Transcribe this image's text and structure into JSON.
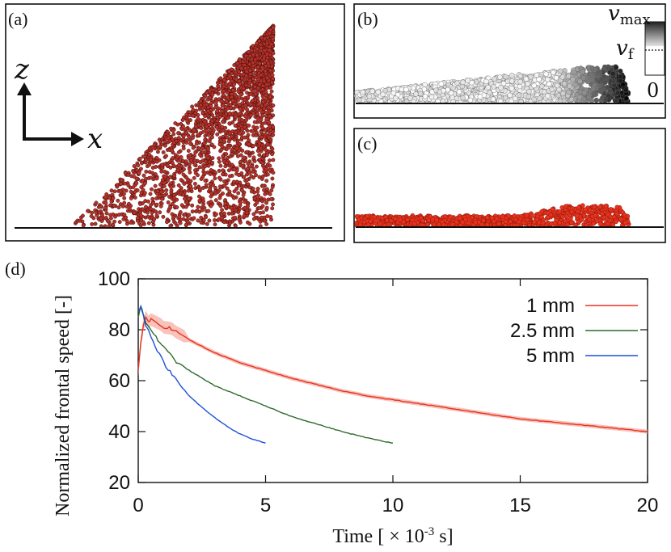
{
  "panels": {
    "a": {
      "label": "(a)",
      "axis_x": "x",
      "axis_z": "z",
      "particle_color": "#b8322a"
    },
    "b": {
      "label": "(b)",
      "colorbar_max": "v",
      "colorbar_max_sub": "max",
      "colorbar_mid": "v",
      "colorbar_mid_sub": "f",
      "colorbar_zero": "0"
    },
    "c": {
      "label": "(c)",
      "particle_color": "#e8321e"
    },
    "d": {
      "label": "(d)"
    }
  },
  "chart_data": {
    "type": "line",
    "xlabel": "Time [ × 10",
    "xlabel_exp": "-3",
    "xlabel_unit": " s]",
    "ylabel": "Normalized frontal speed [-]",
    "xlim": [
      0,
      20
    ],
    "ylim": [
      20,
      100
    ],
    "xticks": [
      0,
      5,
      10,
      15,
      20
    ],
    "yticks": [
      20,
      40,
      60,
      80,
      100
    ],
    "legend_position": "top-right",
    "series": [
      {
        "name": "1 mm",
        "color": "#e8321e",
        "band_color": "#f4a9a0",
        "x": [
          0,
          0.1,
          0.2,
          0.3,
          0.4,
          0.5,
          0.7,
          0.9,
          1.0,
          1.3,
          1.5,
          1.8,
          2.0,
          2.5,
          3,
          4,
          5,
          6,
          7,
          8,
          9,
          10,
          11,
          12,
          13,
          14,
          15,
          16,
          17,
          18,
          19,
          20
        ],
        "y": [
          64,
          75,
          82,
          85,
          83,
          84,
          83,
          82,
          81,
          80.5,
          79,
          77.5,
          76,
          73.5,
          71,
          67,
          64,
          61,
          58.5,
          56,
          54,
          52.5,
          51,
          49.5,
          48,
          46.5,
          45,
          44,
          43,
          42,
          41,
          40
        ]
      },
      {
        "name": "2.5 mm",
        "color": "#2e6b2e",
        "x": [
          0,
          0.1,
          0.2,
          0.3,
          0.5,
          0.7,
          1.0,
          1.5,
          2,
          2.5,
          3,
          4,
          5,
          6,
          7,
          8,
          9,
          10
        ],
        "y": [
          85,
          89,
          86,
          83,
          80,
          77,
          73,
          67.5,
          64,
          61,
          58,
          54,
          50,
          46,
          43,
          40,
          37.5,
          35.5
        ]
      },
      {
        "name": "5 mm",
        "color": "#1f4fd8",
        "x": [
          0,
          0.1,
          0.2,
          0.3,
          0.5,
          0.75,
          1.0,
          1.5,
          2,
          2.5,
          3,
          3.5,
          4,
          4.5,
          5
        ],
        "y": [
          87,
          89,
          86,
          82,
          77,
          72,
          67,
          60,
          54,
          49.5,
          45.5,
          42,
          39,
          37,
          35.5
        ]
      }
    ]
  }
}
